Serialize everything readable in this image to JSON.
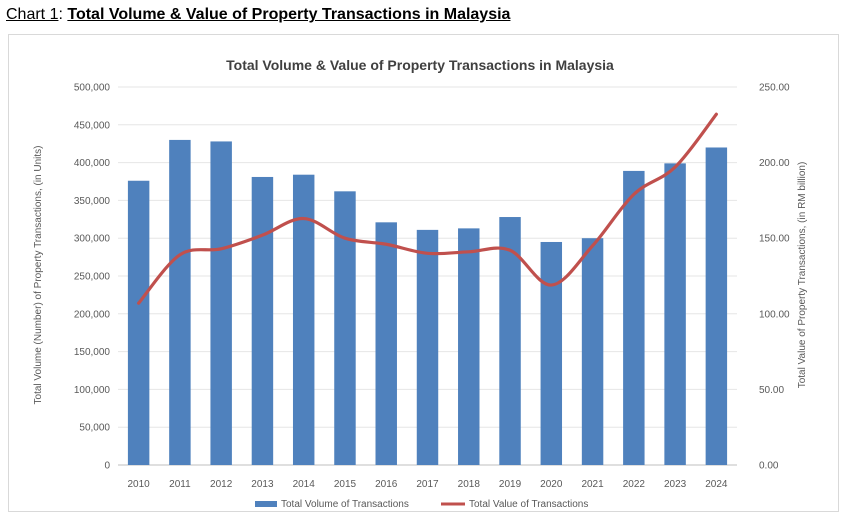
{
  "heading": {
    "prefix": "Chart 1",
    "separator": ": ",
    "main": "Total Volume & Value of Property Transactions in Malaysia"
  },
  "colors": {
    "bar": "#4f81bd",
    "line": "#c0504d",
    "grid": "#e6e6e6",
    "text": "#595959"
  },
  "chart_data": {
    "type": "bar",
    "title": "Total Volume & Value of Property Transactions in Malaysia",
    "categories": [
      "2010",
      "2011",
      "2012",
      "2013",
      "2014",
      "2015",
      "2016",
      "2017",
      "2018",
      "2019",
      "2020",
      "2021",
      "2022",
      "2023",
      "2024"
    ],
    "series": [
      {
        "name": "Total Volume of Transactions",
        "type": "bar",
        "axis": "left",
        "values": [
          376000,
          430000,
          428000,
          381000,
          384000,
          362000,
          321000,
          311000,
          313000,
          328000,
          295000,
          300000,
          389000,
          399000,
          420000
        ]
      },
      {
        "name": "Total Value of Transactions",
        "type": "line",
        "axis": "right",
        "values": [
          107,
          139,
          143,
          152,
          163,
          150,
          146,
          140,
          141,
          142,
          119,
          145,
          179,
          197,
          232
        ]
      }
    ],
    "ylabel": "Total Volume (Number) of Property Transactions, (in Units)",
    "y2label": "Total Value of Property Transactions, (in RM billion)",
    "ylim": [
      0,
      500000
    ],
    "y2lim": [
      0,
      250
    ],
    "yticks": [
      "0",
      "50,000",
      "100,000",
      "150,000",
      "200,000",
      "250,000",
      "300,000",
      "350,000",
      "400,000",
      "450,000",
      "500,000"
    ],
    "y2ticks": [
      "0.00",
      "50.00",
      "100.00",
      "150.00",
      "200.00",
      "250.00"
    ],
    "grid": true,
    "legend": "bottom"
  }
}
